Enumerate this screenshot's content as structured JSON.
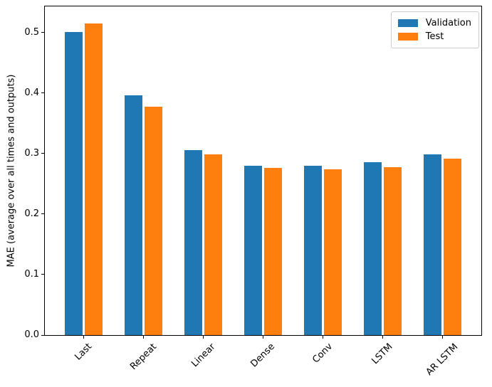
{
  "chart_data": {
    "type": "bar",
    "title": "",
    "xlabel": "",
    "ylabel": "MAE (average over all times and outputs)",
    "categories": [
      "Last",
      "Repeat",
      "Linear",
      "Dense",
      "Conv",
      "LSTM",
      "AR LSTM"
    ],
    "series": [
      {
        "name": "Validation",
        "color": "#1f77b4",
        "values": [
          0.501,
          0.396,
          0.306,
          0.28,
          0.28,
          0.286,
          0.298
        ]
      },
      {
        "name": "Test",
        "color": "#ff7f0e",
        "values": [
          0.515,
          0.377,
          0.299,
          0.276,
          0.274,
          0.277,
          0.292
        ]
      }
    ],
    "ylim": [
      0,
      0.543
    ],
    "yticks": [
      0.0,
      0.1,
      0.2,
      0.3,
      0.4,
      0.5
    ],
    "ytick_decimals": 1,
    "xlim": [
      -0.65,
      6.65
    ],
    "bar_width": 0.3,
    "bar_offsets": [
      -0.17,
      0.17
    ],
    "x_label_rotation_deg": -45,
    "grid": false,
    "legend_position": "upper right",
    "background_color": "#ffffff",
    "spine_color": "#000000"
  }
}
